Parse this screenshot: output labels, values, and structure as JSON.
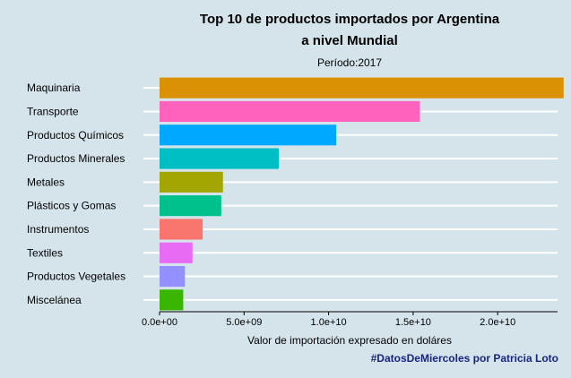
{
  "chart_data": {
    "type": "bar",
    "orientation": "horizontal",
    "title_line1": "Top 10 de productos importados por Argentina",
    "title_line2": "a nivel Mundial",
    "subtitle": "Período:2017",
    "xlabel": "Valor de importación expresado en doláres",
    "ylabel": "",
    "caption": "#DatosDeMiercoles por Patricia Loto",
    "caption_color": "#1a237e",
    "categories": [
      "Maquinaria",
      "Transporte",
      "Productos Químicos",
      "Productos Minerales",
      "Metales",
      "Plásticos y Gomas",
      "Instrumentos",
      "Textiles",
      "Productos Vegetales",
      "Miscelánea"
    ],
    "values": [
      23900000000,
      15400000000,
      10450000000,
      7050000000,
      3750000000,
      3650000000,
      2550000000,
      1950000000,
      1500000000,
      1400000000
    ],
    "colors": [
      "#db9104",
      "#ff62bc",
      "#00a9ff",
      "#00bfc4",
      "#a3a500",
      "#00c08b",
      "#f8766d",
      "#e76bf3",
      "#9590ff",
      "#39b600"
    ],
    "xticks": [
      0,
      5000000000,
      10000000000,
      15000000000,
      20000000000
    ],
    "xtick_labels": [
      "0.0e+00",
      "5.0e+09",
      "1.0e+10",
      "1.5e+10",
      "2.0e+10"
    ],
    "xlim": [
      0,
      24000000000
    ],
    "grid": "horizontal-major",
    "legend": "none"
  }
}
